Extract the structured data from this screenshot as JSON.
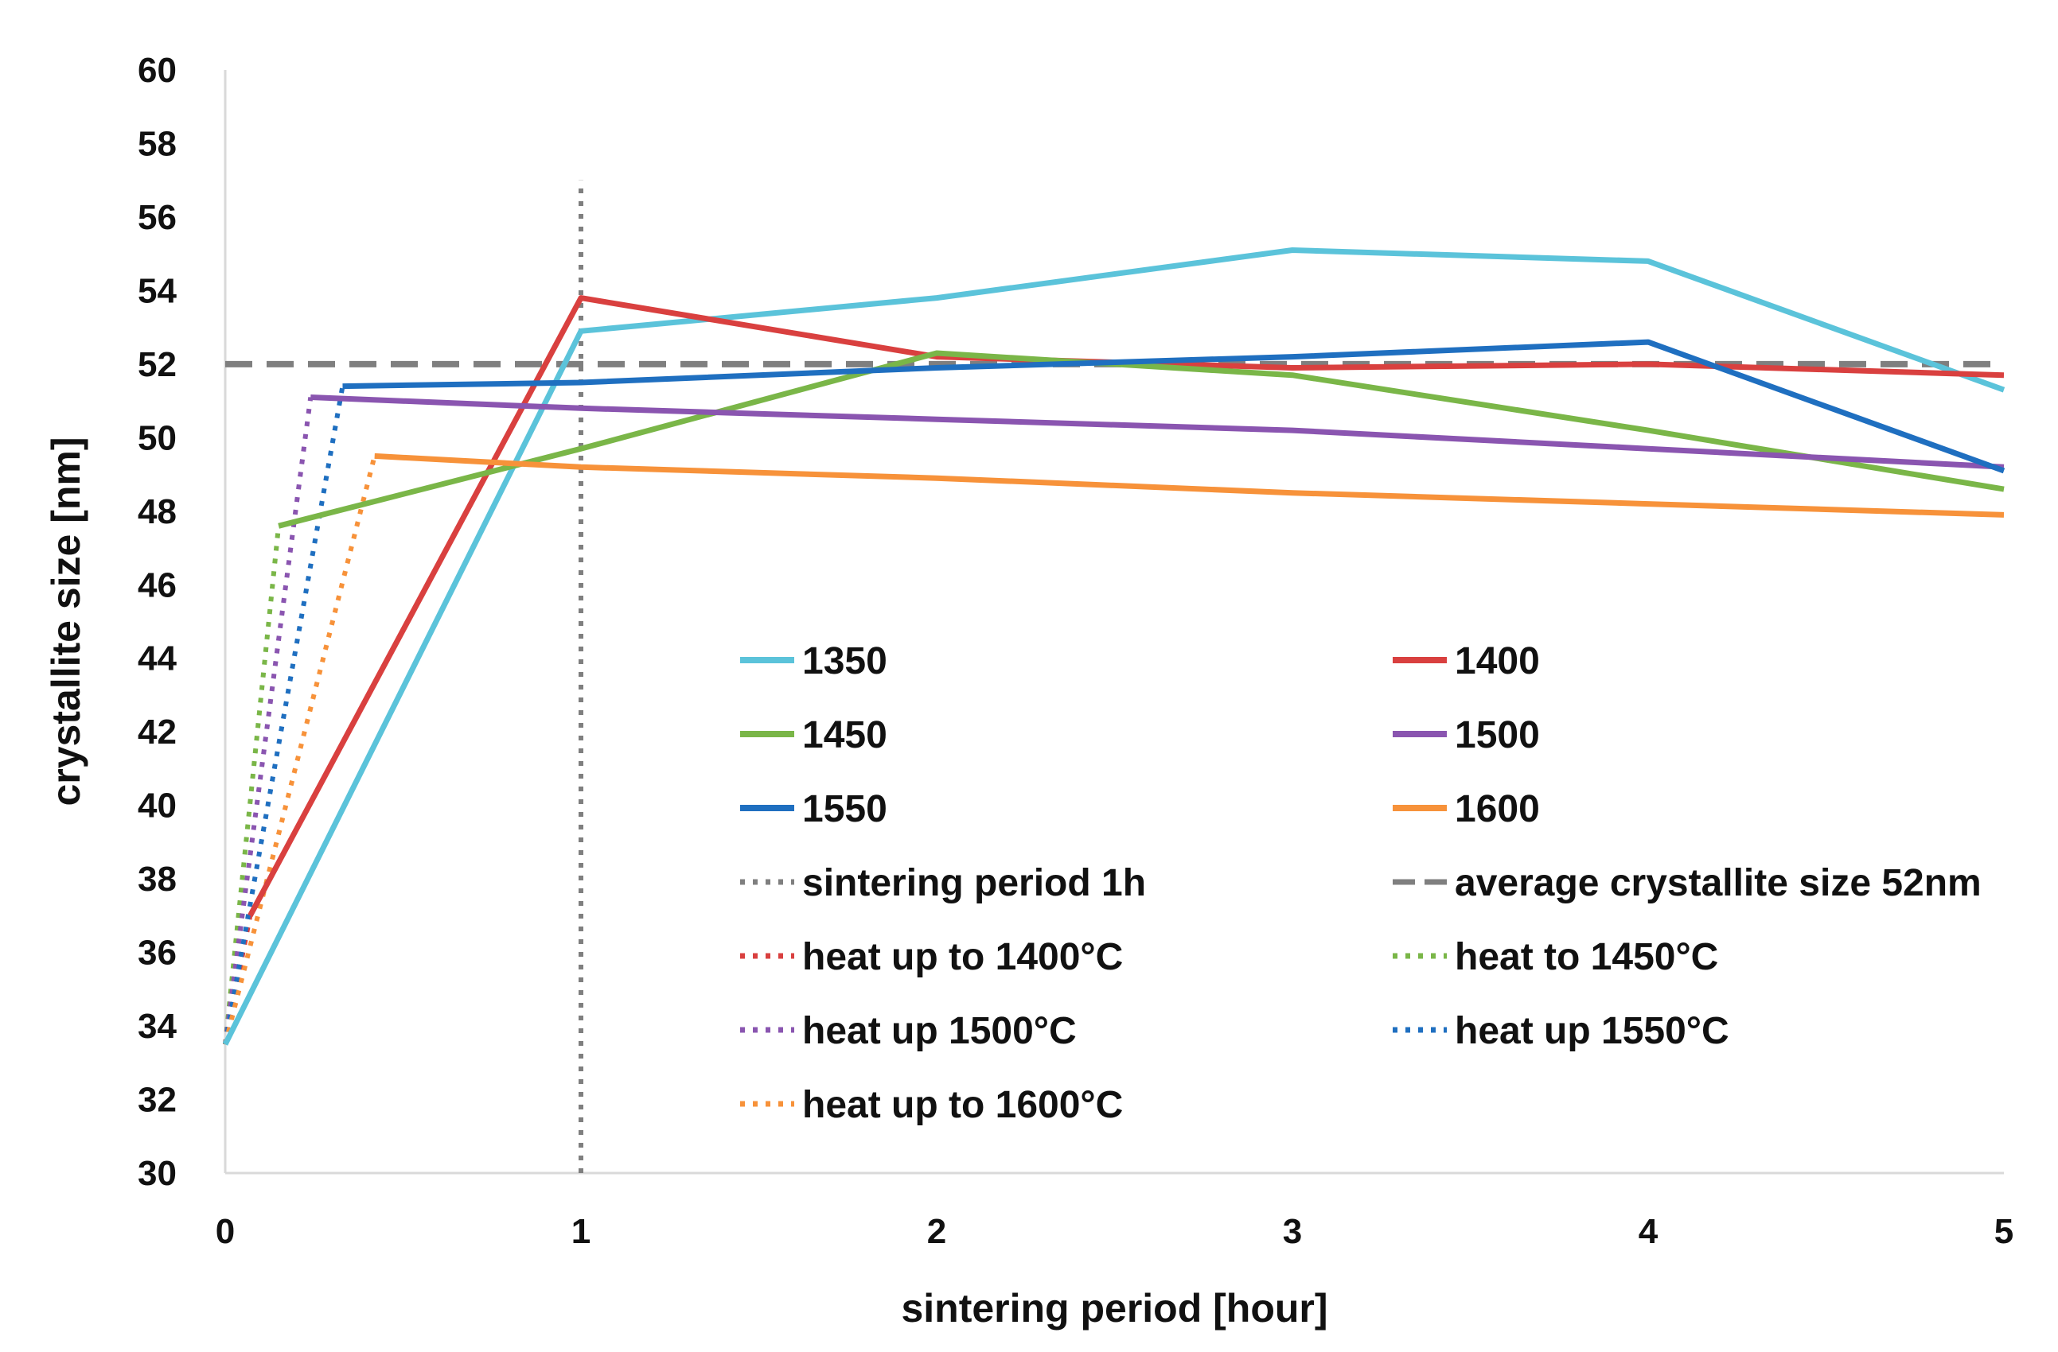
{
  "chart_data": {
    "type": "line",
    "title": "",
    "xlabel": "sintering period [hour]",
    "ylabel": "crystallite size [nm]",
    "xlim": [
      0,
      5
    ],
    "ylim": [
      30,
      60
    ],
    "xticks": [
      0,
      1,
      2,
      3,
      4,
      5
    ],
    "yticks": [
      30,
      32,
      34,
      36,
      38,
      40,
      42,
      44,
      46,
      48,
      50,
      52,
      54,
      56,
      58,
      60
    ],
    "grid": false,
    "legend_position": "center-right",
    "series": [
      {
        "name": "1350",
        "style": "solid",
        "color": "#5BC3DA",
        "x": [
          0,
          1,
          2,
          3,
          4,
          5
        ],
        "y": [
          33.5,
          52.9,
          53.8,
          55.1,
          54.8,
          51.3
        ]
      },
      {
        "name": "1400",
        "style": "solid",
        "color": "#D9403F",
        "x": [
          0.07,
          1,
          2,
          3,
          4,
          5
        ],
        "y": [
          37.0,
          53.8,
          52.2,
          51.9,
          52.0,
          51.7
        ]
      },
      {
        "name": "1450",
        "style": "solid",
        "color": "#7AB648",
        "x": [
          0.15,
          1,
          2,
          3,
          4,
          5
        ],
        "y": [
          47.6,
          49.7,
          52.3,
          51.7,
          50.2,
          48.6
        ]
      },
      {
        "name": "1500",
        "style": "solid",
        "color": "#8A55B0",
        "x": [
          0.24,
          1,
          2,
          3,
          4,
          5
        ],
        "y": [
          51.1,
          50.8,
          50.5,
          50.2,
          49.7,
          49.2
        ]
      },
      {
        "name": "1550",
        "style": "solid",
        "color": "#1F6FC0",
        "x": [
          0.33,
          1,
          2,
          3,
          4,
          5
        ],
        "y": [
          51.4,
          51.5,
          51.9,
          52.2,
          52.6,
          49.1
        ]
      },
      {
        "name": "1600",
        "style": "solid",
        "color": "#F7923A",
        "x": [
          0.42,
          1,
          2,
          3,
          4,
          5
        ],
        "y": [
          49.5,
          49.2,
          48.9,
          48.5,
          48.2,
          47.9
        ]
      },
      {
        "name": "sintering period 1h",
        "style": "dotted",
        "color": "#7F7F7F",
        "x": [
          1,
          1
        ],
        "y": [
          30,
          57
        ]
      },
      {
        "name": "average crystallite size 52nm",
        "style": "dashed",
        "color": "#7F7F7F",
        "x": [
          0,
          5
        ],
        "y": [
          52,
          52
        ]
      },
      {
        "name": "heat up to 1400°C",
        "style": "dotted",
        "color": "#D9403F",
        "x": [
          0,
          0.07
        ],
        "y": [
          33.5,
          37.0
        ]
      },
      {
        "name": "heat to 1450°C",
        "style": "dotted",
        "color": "#7AB648",
        "x": [
          0,
          0.15
        ],
        "y": [
          33.5,
          47.6
        ]
      },
      {
        "name": "heat up 1500°C",
        "style": "dotted",
        "color": "#8A55B0",
        "x": [
          0,
          0.24
        ],
        "y": [
          33.5,
          51.1
        ]
      },
      {
        "name": "heat up 1550°C",
        "style": "dotted",
        "color": "#1F6FC0",
        "x": [
          0,
          0.33
        ],
        "y": [
          33.5,
          51.4
        ]
      },
      {
        "name": "heat up to 1600°C",
        "style": "dotted",
        "color": "#F7923A",
        "x": [
          0,
          0.42
        ],
        "y": [
          33.5,
          49.5
        ]
      }
    ],
    "legend": [
      {
        "label": "1350",
        "series": 0
      },
      {
        "label": "1400",
        "series": 1
      },
      {
        "label": "1450",
        "series": 2
      },
      {
        "label": "1500",
        "series": 3
      },
      {
        "label": "1550",
        "series": 4
      },
      {
        "label": "1600",
        "series": 5
      },
      {
        "label": "sintering period 1h",
        "series": 6
      },
      {
        "label": "average crystallite size 52nm",
        "series": 7
      },
      {
        "label": "heat up to 1400°C",
        "series": 8
      },
      {
        "label": "heat to 1450°C",
        "series": 9
      },
      {
        "label": "heat up 1500°C",
        "series": 10
      },
      {
        "label": "heat up 1550°C",
        "series": 11
      },
      {
        "label": "heat up to 1600°C",
        "series": 12
      }
    ]
  }
}
